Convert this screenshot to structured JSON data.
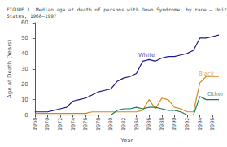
{
  "chart_data": {
    "type": "line",
    "title": "FIGURE 1. Median age at death of persons with Down Syndrome, by race — United\nStates, 1968–1997",
    "x_label": "Year",
    "y_label": "Age at Death (Years)",
    "x": [
      1968,
      1969,
      1970,
      1971,
      1972,
      1973,
      1974,
      1975,
      1976,
      1977,
      1978,
      1979,
      1980,
      1981,
      1982,
      1983,
      1984,
      1985,
      1986,
      1987,
      1988,
      1989,
      1990,
      1991,
      1992,
      1993,
      1994,
      1995,
      1996,
      1997
    ],
    "series": [
      {
        "name": "White",
        "color": "#1a1a8c",
        "values": [
          2,
          2,
          2,
          3,
          4,
          5,
          9,
          10,
          11,
          13,
          15,
          16,
          17,
          22,
          24,
          25,
          27,
          35,
          36,
          35,
          37,
          38,
          38,
          39,
          40,
          42,
          50,
          50,
          51,
          52
        ]
      },
      {
        "name": "Black",
        "color": "#d4891a",
        "values": [
          1,
          1,
          1,
          1,
          1,
          1,
          1,
          1,
          1,
          2,
          2,
          2,
          2,
          2,
          2,
          2,
          2,
          3,
          10,
          4,
          11,
          10,
          5,
          4,
          2,
          2,
          21,
          25,
          25,
          25
        ]
      },
      {
        "name": "Other",
        "color": "#1a7a5a",
        "values": [
          0,
          0,
          0,
          0,
          0,
          0,
          0,
          0,
          0,
          0,
          0,
          0,
          0,
          3,
          4,
          4,
          5,
          4,
          5,
          5,
          4,
          3,
          3,
          2,
          0,
          0,
          12,
          10,
          10,
          10
        ]
      }
    ],
    "annotations": [
      {
        "text": "White",
        "x": 1984.3,
        "y": 39,
        "color": "#1a1a8c"
      },
      {
        "text": "Black",
        "x": 1993.8,
        "y": 26.5,
        "color": "#d4891a"
      },
      {
        "text": "Other",
        "x": 1995.2,
        "y": 13.5,
        "color": "#1a7a5a"
      }
    ],
    "xlim": [
      1968,
      1997
    ],
    "xticks": [
      1968,
      1970,
      1972,
      1974,
      1976,
      1978,
      1980,
      1982,
      1984,
      1986,
      1988,
      1990,
      1992,
      1994,
      1996
    ],
    "ylim": [
      0,
      60
    ],
    "yticks": [
      0,
      10,
      20,
      30,
      40,
      50,
      60
    ],
    "grid": false
  }
}
